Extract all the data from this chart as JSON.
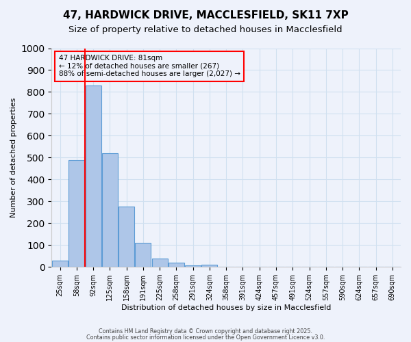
{
  "title_line1": "47, HARDWICK DRIVE, MACCLESFIELD, SK11 7XP",
  "title_line2": "Size of property relative to detached houses in Macclesfield",
  "xlabel": "Distribution of detached houses by size in Macclesfield",
  "ylabel": "Number of detached properties",
  "bar_values": [
    30,
    490,
    830,
    520,
    275,
    110,
    38,
    20,
    8,
    10,
    0,
    0,
    0,
    0,
    0,
    0,
    0,
    0,
    0,
    0,
    0
  ],
  "categories": [
    "25sqm",
    "58sqm",
    "92sqm",
    "125sqm",
    "158sqm",
    "191sqm",
    "225sqm",
    "258sqm",
    "291sqm",
    "324sqm",
    "358sqm",
    "391sqm",
    "424sqm",
    "457sqm",
    "491sqm",
    "524sqm",
    "557sqm",
    "590sqm",
    "624sqm",
    "657sqm",
    "690sqm"
  ],
  "bar_color": "#aec6e8",
  "bar_edge_color": "#5b9bd5",
  "grid_color": "#d0e0f0",
  "vline_color": "red",
  "vline_x": 1.5,
  "annotation_text": "47 HARDWICK DRIVE: 81sqm\n← 12% of detached houses are smaller (267)\n88% of semi-detached houses are larger (2,027) →",
  "annotation_box_color": "red",
  "ylim": [
    0,
    1000
  ],
  "yticks": [
    0,
    100,
    200,
    300,
    400,
    500,
    600,
    700,
    800,
    900,
    1000
  ],
  "footnote1": "Contains HM Land Registry data © Crown copyright and database right 2025.",
  "footnote2": "Contains public sector information licensed under the Open Government Licence v3.0.",
  "bg_color": "#eef2fb",
  "title_fontsize": 11,
  "subtitle_fontsize": 9.5
}
